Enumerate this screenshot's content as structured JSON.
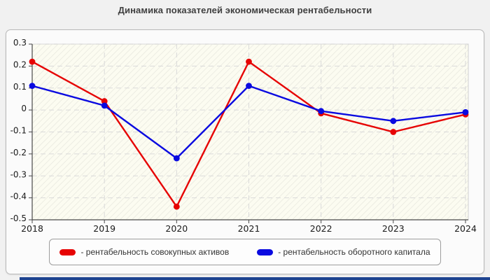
{
  "chart_data": {
    "type": "line",
    "title": "Динамика показателей экономическая рентабельности",
    "categories": [
      "2018",
      "2019",
      "2020",
      "2021",
      "2022",
      "2023",
      "2024"
    ],
    "series": [
      {
        "name": "рентабельность совокупных активов",
        "color": "#e60303",
        "values": [
          0.22,
          0.04,
          -0.44,
          0.22,
          -0.015,
          -0.1,
          -0.02
        ]
      },
      {
        "name": "рентабельность оборотного капитала",
        "color": "#0a0ae0",
        "values": [
          0.11,
          0.02,
          -0.22,
          0.11,
          -0.005,
          -0.05,
          -0.01
        ]
      }
    ],
    "ylim": [
      -0.5,
      0.3
    ],
    "yticks": [
      0.3,
      0.2,
      0.1,
      0,
      -0.1,
      -0.2,
      -0.3,
      -0.4,
      -0.5
    ],
    "ytick_labels": [
      "0.3",
      "0.2",
      "0.1",
      "0",
      "-0.1",
      "-0.2",
      "-0.3",
      "-0.4",
      "-0.5"
    ],
    "grid": "dashed",
    "legend_position": "bottom",
    "legend": [
      {
        "label": "- рентабельность совокупных активов",
        "color": "#e60303"
      },
      {
        "label": "- рентабельность оборотного капитала",
        "color": "#0a0ae0"
      }
    ]
  },
  "colors": {
    "page_background": "#f1f1f1",
    "panel_background": "#fbfbfb",
    "plot_background": "#fcfcf1",
    "hatch_line": "#e9e9df",
    "gridline": "#d9d9d9",
    "axis": "#4a4a4a",
    "tick_label": "#1a1a1a",
    "bottom_strip": "#1d4390"
  }
}
